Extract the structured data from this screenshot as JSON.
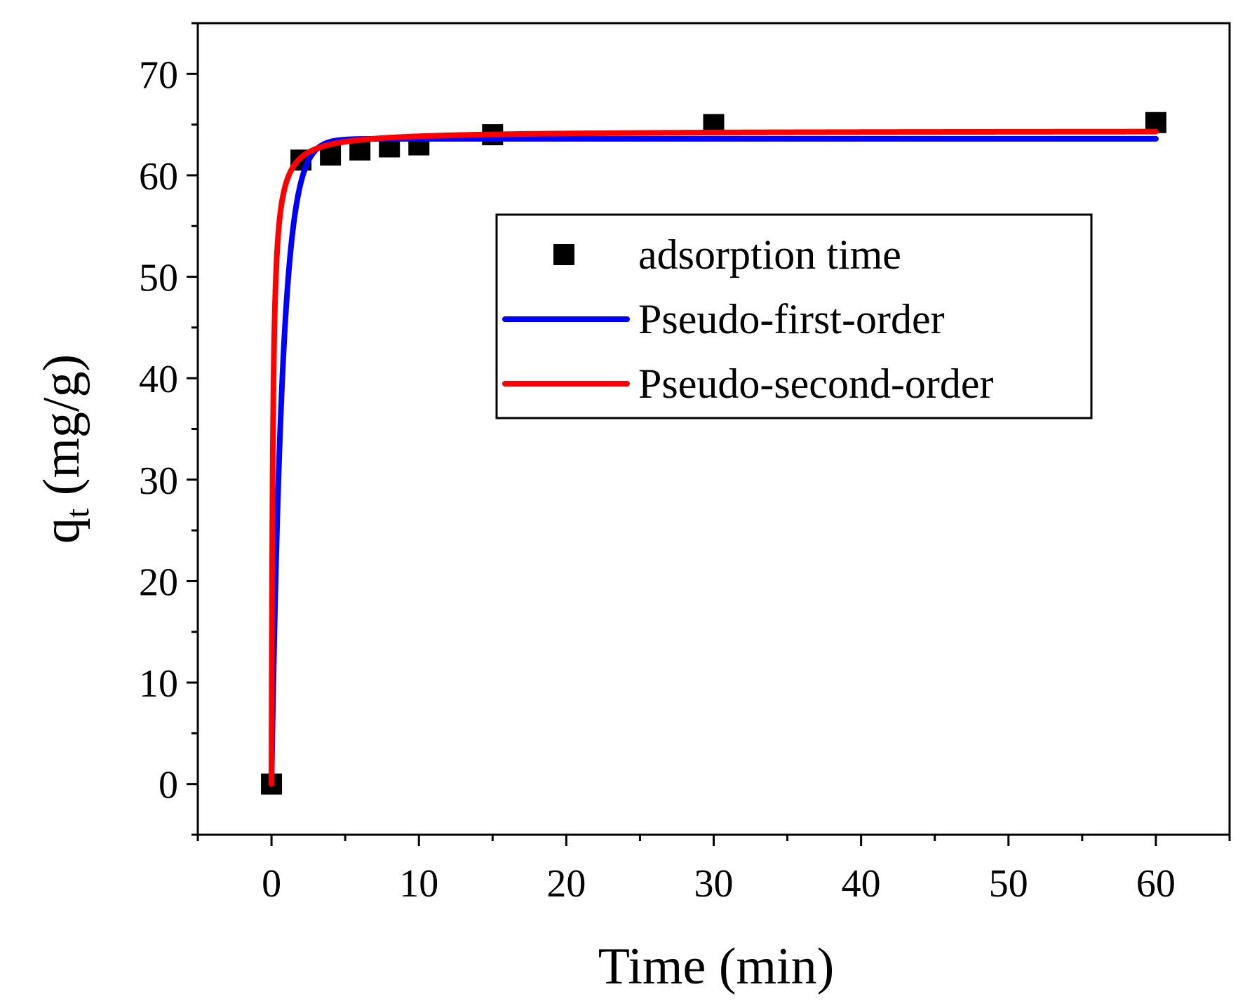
{
  "chart_data": {
    "type": "scatter",
    "title": "",
    "xlabel": "Time (min)",
    "ylabel_main": "q",
    "ylabel_sub": "t",
    "ylabel_units": " (mg/g)",
    "xlim": [
      -5,
      65
    ],
    "ylim": [
      -5,
      75
    ],
    "x_ticks": [
      0,
      10,
      20,
      30,
      40,
      50,
      60
    ],
    "y_ticks": [
      0,
      10,
      20,
      30,
      40,
      50,
      60,
      70
    ],
    "x_tick_labels": [
      "0",
      "10",
      "20",
      "30",
      "40",
      "50",
      "60"
    ],
    "y_tick_labels": [
      "0",
      "10",
      "20",
      "30",
      "40",
      "50",
      "60",
      "70"
    ],
    "legend_position": "center-right",
    "series": [
      {
        "name": "adsorption time",
        "kind": "scatter",
        "marker": "square",
        "color": "#000000",
        "x": [
          0,
          2,
          4,
          6,
          8,
          10,
          15,
          30,
          60
        ],
        "y": [
          0,
          61.5,
          62.0,
          62.5,
          62.8,
          63.0,
          64.0,
          65.0,
          65.2
        ]
      },
      {
        "name": "Pseudo-first-order",
        "kind": "line",
        "color": "#0000ff",
        "model": "pfo",
        "qe": 63.6,
        "k": 1.35,
        "x_range": [
          0,
          60
        ]
      },
      {
        "name": "Pseudo-second-order",
        "kind": "line",
        "color": "#ff0000",
        "model": "pso",
        "qe": 64.4,
        "k": 0.18,
        "x_range": [
          0,
          60
        ]
      }
    ]
  }
}
